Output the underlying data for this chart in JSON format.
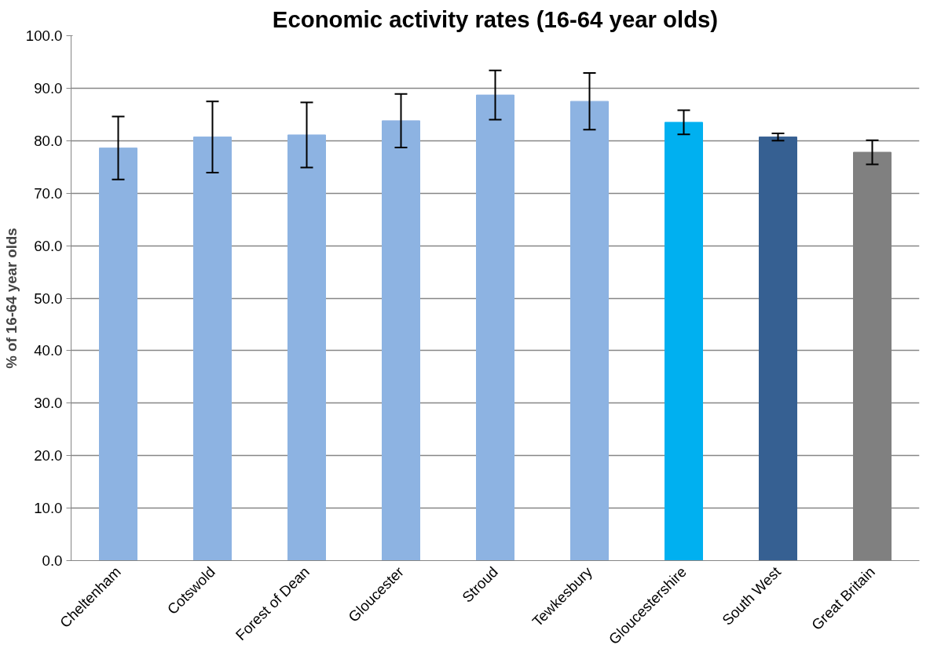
{
  "chart_data": {
    "type": "bar",
    "title": "Economic activity rates (16-64 year olds)",
    "ylabel": "% of 16-64 year olds",
    "categories": [
      "Cheltenham",
      "Cotswold",
      "Forest of Dean",
      "Gloucester",
      "Stroud",
      "Tewkesbury",
      "Gloucestershire",
      "South West",
      "Great Britain"
    ],
    "values": [
      78.6,
      80.7,
      81.1,
      83.8,
      88.7,
      87.5,
      83.5,
      80.7,
      77.8
    ],
    "errors": [
      6.0,
      6.8,
      6.2,
      5.1,
      4.7,
      5.4,
      2.3,
      0.7,
      2.3
    ],
    "colors": [
      "#8db3e2",
      "#8db3e2",
      "#8db3e2",
      "#8db3e2",
      "#8db3e2",
      "#8db3e2",
      "#00b0f0",
      "#366092",
      "#808080"
    ],
    "ylim": [
      0,
      100
    ],
    "yticks": [
      {
        "value": 0,
        "label": "0.0"
      },
      {
        "value": 10,
        "label": "10.0"
      },
      {
        "value": 20,
        "label": "20.0"
      },
      {
        "value": 30,
        "label": "30.0"
      },
      {
        "value": 40,
        "label": "40.0"
      },
      {
        "value": 50,
        "label": "50.0"
      },
      {
        "value": 60,
        "label": "60.0"
      },
      {
        "value": 70,
        "label": "70.0"
      },
      {
        "value": 80,
        "label": "80.0"
      },
      {
        "value": 90,
        "label": "90.0"
      },
      {
        "value": 100,
        "label": "100.0"
      }
    ],
    "grid": "y"
  }
}
